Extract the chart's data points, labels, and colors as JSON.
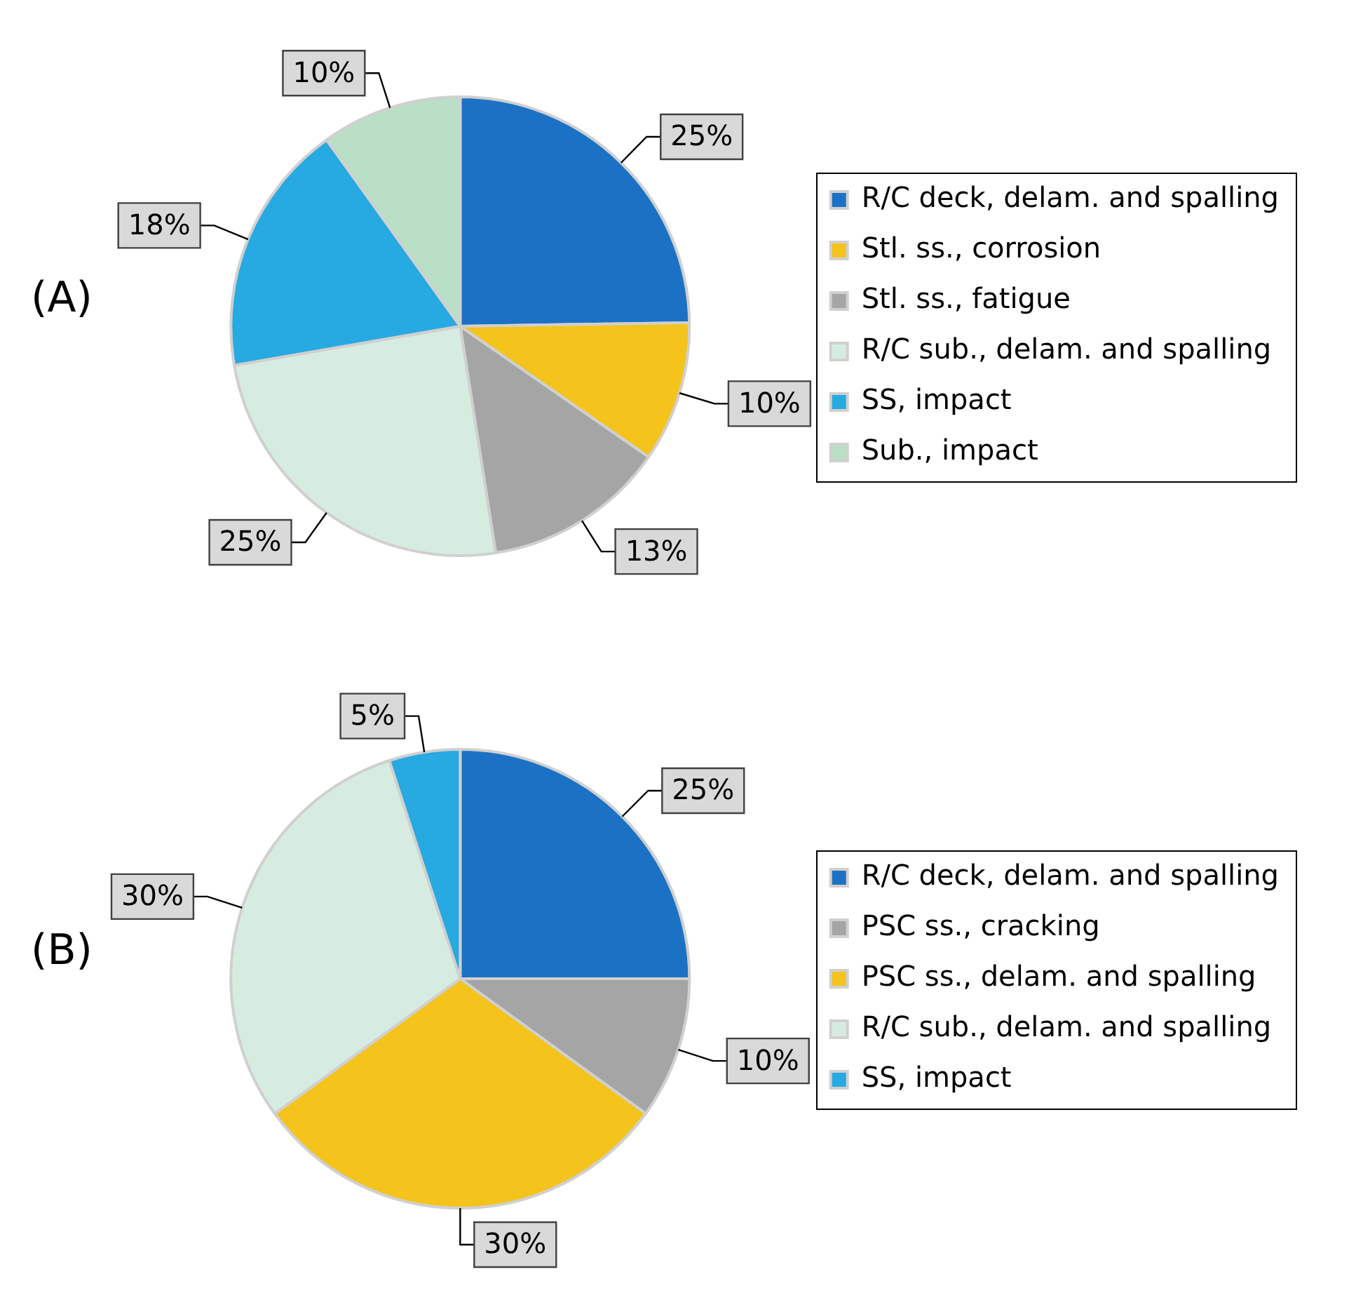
{
  "chart_data": [
    {
      "type": "pie",
      "title": "(A)",
      "categories": [
        "R/C deck, delam. and spalling",
        "Stl. ss., corrosion",
        "Stl. ss., fatigue",
        "R/C sub., delam. and spalling",
        "SS, impact",
        "Sub., impact"
      ],
      "values": [
        25,
        10,
        13,
        25,
        18,
        10
      ],
      "colors": [
        "#1b72c4",
        "#f4c31c",
        "#a5a5a5",
        "#d6ece0",
        "#27a9e1",
        "#b9dfc6"
      ],
      "value_labels": [
        "25%",
        "10%",
        "13%",
        "25%",
        "18%",
        "10%"
      ],
      "legend": "right"
    },
    {
      "type": "pie",
      "title": "(B)",
      "categories": [
        "R/C deck, delam. and spalling",
        "PSC ss., cracking",
        "PSC ss., delam. and spalling",
        "R/C sub., delam. and spalling",
        "SS, impact"
      ],
      "values": [
        25,
        10,
        30,
        30,
        5
      ],
      "colors": [
        "#1b72c4",
        "#a5a5a5",
        "#f4c31c",
        "#d6ece0",
        "#27a9e1"
      ],
      "value_labels": [
        "25%",
        "10%",
        "30%",
        "30%",
        "5%"
      ],
      "legend": "right"
    }
  ]
}
